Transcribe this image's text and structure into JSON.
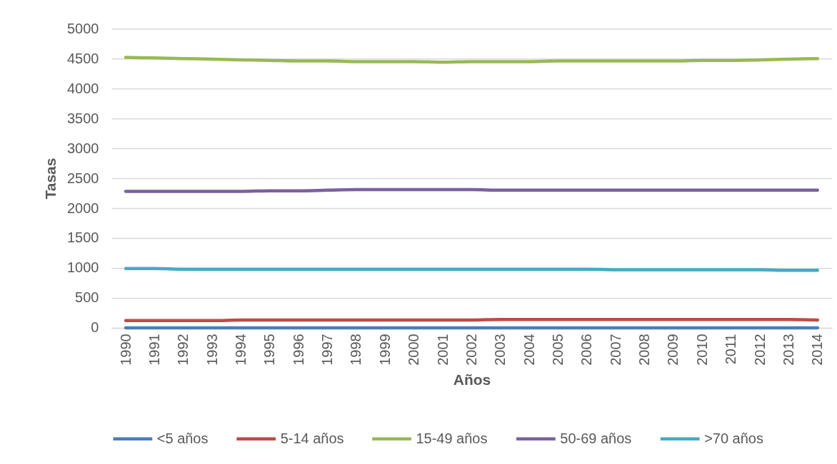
{
  "chart_data": {
    "type": "line",
    "categories": [
      "1990",
      "1991",
      "1992",
      "1993",
      "1994",
      "1995",
      "1996",
      "1997",
      "1998",
      "1999",
      "2000",
      "2001",
      "2002",
      "2003",
      "2004",
      "2005",
      "2006",
      "2007",
      "2008",
      "2009",
      "2010",
      "2011",
      "2012",
      "2013",
      "2014"
    ],
    "series": [
      {
        "name": "<5 años",
        "color": "#4a7ebb",
        "values": [
          0,
          0,
          0,
          0,
          0,
          0,
          0,
          0,
          0,
          0,
          0,
          0,
          0,
          0,
          0,
          0,
          0,
          0,
          0,
          0,
          0,
          0,
          0,
          0,
          0
        ]
      },
      {
        "name": "5-14 años",
        "color": "#be4b48",
        "values": [
          120,
          120,
          120,
          120,
          130,
          130,
          130,
          130,
          130,
          130,
          130,
          130,
          130,
          140,
          140,
          140,
          140,
          140,
          140,
          140,
          140,
          140,
          140,
          140,
          130
        ]
      },
      {
        "name": "15-49 años",
        "color": "#98b954",
        "values": [
          4520,
          4510,
          4500,
          4490,
          4480,
          4470,
          4460,
          4460,
          4450,
          4450,
          4450,
          4440,
          4450,
          4450,
          4450,
          4460,
          4460,
          4460,
          4460,
          4460,
          4470,
          4470,
          4480,
          4490,
          4500
        ]
      },
      {
        "name": "50-69 años",
        "color": "#7d60a0",
        "values": [
          2280,
          2280,
          2280,
          2280,
          2280,
          2290,
          2290,
          2300,
          2310,
          2310,
          2310,
          2310,
          2310,
          2300,
          2300,
          2300,
          2300,
          2300,
          2300,
          2300,
          2300,
          2300,
          2300,
          2300,
          2300
        ]
      },
      {
        "name": ">70 años",
        "color": "#46aac5",
        "values": [
          990,
          990,
          980,
          980,
          980,
          980,
          980,
          980,
          980,
          980,
          980,
          980,
          980,
          980,
          980,
          980,
          980,
          970,
          970,
          970,
          970,
          970,
          970,
          960,
          960
        ]
      }
    ],
    "xlabel": "Años",
    "ylabel": "Tasas",
    "ylim": [
      0,
      5000
    ],
    "yticks": [
      0,
      500,
      1000,
      1500,
      2000,
      2500,
      3000,
      3500,
      4000,
      4500,
      5000
    ],
    "grid": "y",
    "legend": "bottom",
    "line_style": "solid"
  }
}
